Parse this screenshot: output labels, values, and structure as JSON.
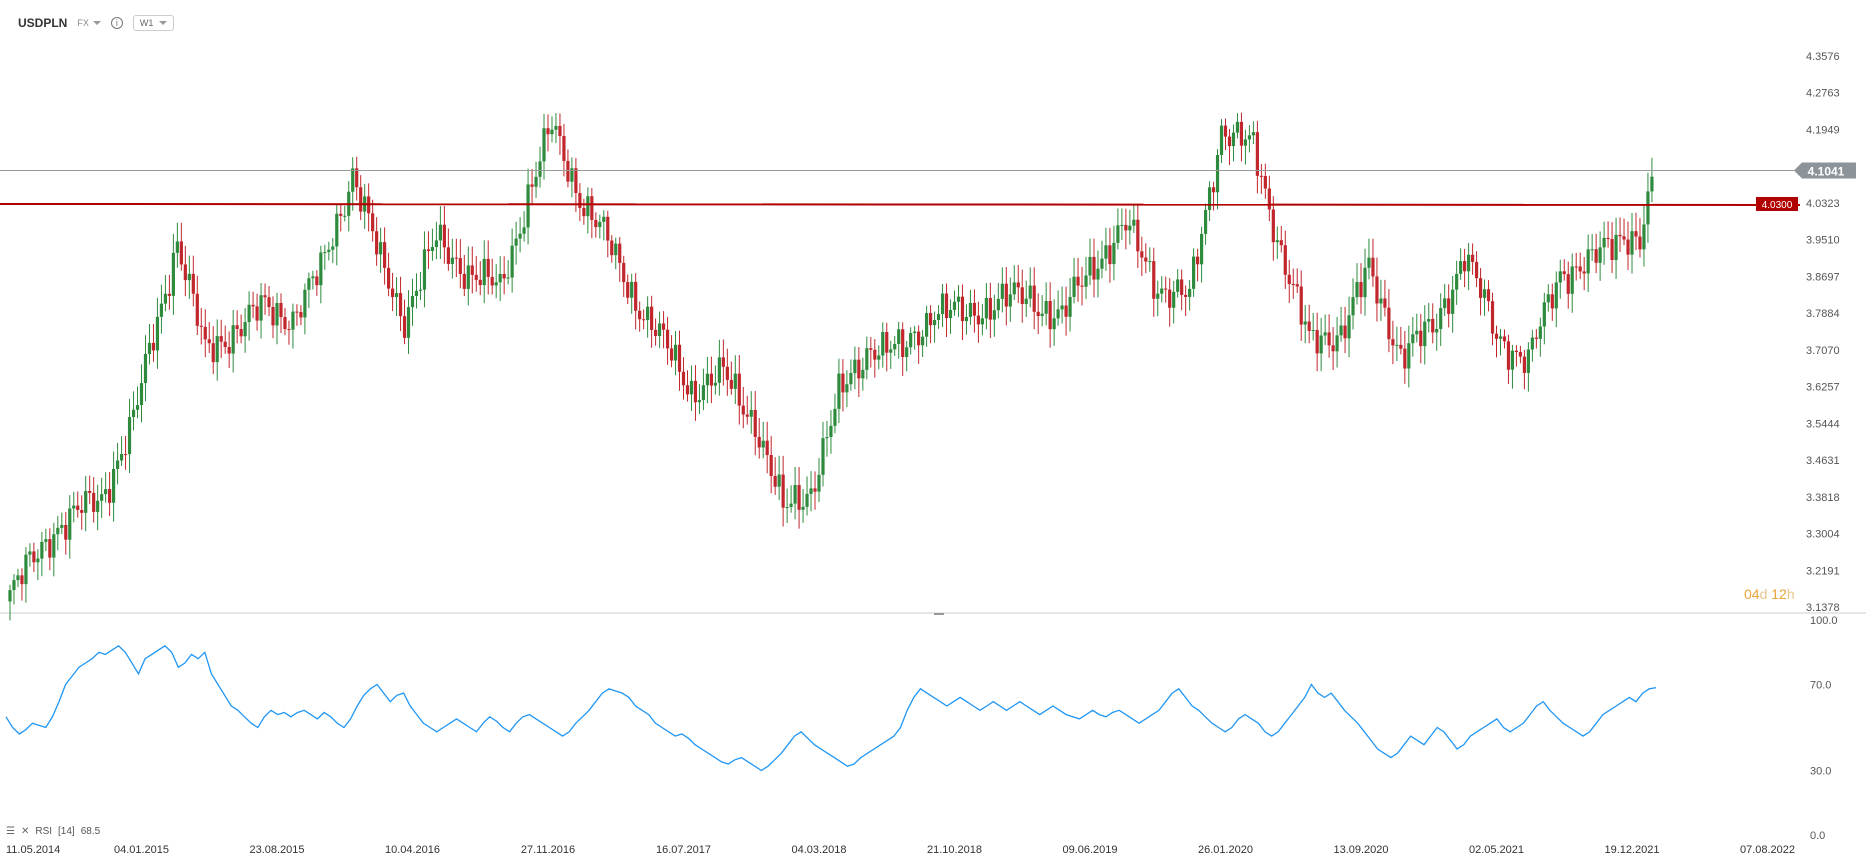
{
  "header": {
    "symbol": "USDPLN",
    "market": "FX",
    "interval": "W1"
  },
  "price_tag": {
    "current": "4.1041",
    "current_value": 4.1041,
    "level": "4.0300",
    "level_value": 4.03
  },
  "countdown": {
    "days": "04",
    "days_unit": "d",
    "hours": "12",
    "hours_unit": "h"
  },
  "rsi_legend": {
    "label": "RSI",
    "param": "[14]",
    "value": "68.5"
  },
  "colors": {
    "up": "#2e8b3e",
    "down": "#c0262b",
    "level_line": "#b00000",
    "rsi_line": "#2196f3",
    "grid": "#d8d8d8"
  },
  "chart_data": [
    {
      "type": "candlestick",
      "title": "",
      "ylim": [
        3.1378,
        4.3576
      ],
      "y_ticks": [
        "4.3576",
        "4.2763",
        "4.1949",
        "4.1041",
        "4.0323",
        "3.9510",
        "3.8697",
        "3.7884",
        "3.7070",
        "3.6257",
        "3.5444",
        "3.4631",
        "3.3818",
        "3.3004",
        "3.2191",
        "3.1378"
      ],
      "x_tick_labels": [
        "11.05.2014",
        "04.01.2015",
        "23.08.2015",
        "10.04.2016",
        "27.11.2016",
        "16.07.2017",
        "04.03.2018",
        "21.10.2018",
        "09.06.2019",
        "26.01.2020",
        "13.09.2020",
        "02.05.2021",
        "19.12.2021",
        "07.08.2022"
      ],
      "horizontal_level": 4.03,
      "close_path": [
        [
          "2014-05-11",
          3.15
        ],
        [
          "2014-08-03",
          3.31
        ],
        [
          "2014-10-26",
          3.38
        ],
        [
          "2014-12-21",
          3.55
        ],
        [
          "2015-01-18",
          3.7
        ],
        [
          "2015-03-08",
          3.95
        ],
        [
          "2015-04-26",
          3.7
        ],
        [
          "2015-06-14",
          3.75
        ],
        [
          "2015-08-09",
          3.8
        ],
        [
          "2015-09-27",
          3.78
        ],
        [
          "2015-11-15",
          3.88
        ],
        [
          "2016-01-10",
          4.1
        ],
        [
          "2016-02-28",
          3.9
        ],
        [
          "2016-04-10",
          3.78
        ],
        [
          "2016-06-05",
          3.95
        ],
        [
          "2016-07-31",
          3.88
        ],
        [
          "2016-09-25",
          3.84
        ],
        [
          "2016-11-13",
          4.05
        ],
        [
          "2016-12-25",
          4.2
        ],
        [
          "2017-02-12",
          4.05
        ],
        [
          "2017-03-26",
          3.96
        ],
        [
          "2017-05-21",
          3.82
        ],
        [
          "2017-07-09",
          3.72
        ],
        [
          "2017-08-27",
          3.62
        ],
        [
          "2017-10-22",
          3.65
        ],
        [
          "2017-12-17",
          3.55
        ],
        [
          "2018-02-04",
          3.35
        ],
        [
          "2018-03-25",
          3.4
        ],
        [
          "2018-05-13",
          3.6
        ],
        [
          "2018-07-08",
          3.72
        ],
        [
          "2018-09-02",
          3.7
        ],
        [
          "2018-10-28",
          3.8
        ],
        [
          "2018-12-23",
          3.78
        ],
        [
          "2019-02-17",
          3.82
        ],
        [
          "2019-04-14",
          3.82
        ],
        [
          "2019-06-09",
          3.78
        ],
        [
          "2019-08-04",
          3.9
        ],
        [
          "2019-09-29",
          3.98
        ],
        [
          "2019-11-24",
          3.85
        ],
        [
          "2020-01-19",
          3.82
        ],
        [
          "2020-03-15",
          4.2
        ],
        [
          "2020-05-10",
          4.15
        ],
        [
          "2020-06-21",
          3.96
        ],
        [
          "2020-08-16",
          3.72
        ],
        [
          "2020-10-11",
          3.75
        ],
        [
          "2020-11-29",
          3.88
        ],
        [
          "2021-01-24",
          3.7
        ],
        [
          "2021-03-21",
          3.75
        ],
        [
          "2021-05-16",
          3.92
        ],
        [
          "2021-07-11",
          3.74
        ],
        [
          "2021-09-05",
          3.68
        ],
        [
          "2021-10-31",
          3.88
        ],
        [
          "2021-12-26",
          3.9
        ],
        [
          "2022-02-20",
          3.97
        ],
        [
          "2022-03-20",
          3.95
        ],
        [
          "2022-04-17",
          4.1
        ]
      ]
    },
    {
      "type": "line",
      "title": "",
      "series": [
        {
          "name": "RSI [14]"
        }
      ],
      "ylim": [
        0,
        100
      ],
      "y_ticks": [
        "100.0",
        "70.0",
        "30.0",
        "0.0"
      ],
      "last_value": 68.5,
      "values": [
        55,
        50,
        47,
        49,
        52,
        51,
        50,
        55,
        62,
        70,
        74,
        78,
        80,
        82,
        85,
        84,
        86,
        88,
        85,
        80,
        75,
        82,
        84,
        86,
        88,
        85,
        78,
        80,
        84,
        82,
        85,
        75,
        70,
        65,
        60,
        58,
        55,
        52,
        50,
        55,
        58,
        56,
        57,
        55,
        57,
        58,
        56,
        54,
        57,
        55,
        52,
        50,
        54,
        60,
        65,
        68,
        70,
        66,
        62,
        65,
        66,
        60,
        56,
        52,
        50,
        48,
        50,
        52,
        54,
        52,
        50,
        48,
        52,
        55,
        53,
        50,
        48,
        52,
        55,
        56,
        54,
        52,
        50,
        48,
        46,
        48,
        52,
        55,
        58,
        62,
        66,
        68,
        67,
        66,
        64,
        60,
        58,
        56,
        52,
        50,
        48,
        46,
        47,
        45,
        42,
        40,
        38,
        36,
        34,
        33,
        35,
        36,
        34,
        32,
        30,
        32,
        35,
        38,
        42,
        46,
        48,
        45,
        42,
        40,
        38,
        36,
        34,
        32,
        33,
        36,
        38,
        40,
        42,
        44,
        46,
        50,
        58,
        64,
        68,
        66,
        64,
        62,
        60,
        62,
        64,
        62,
        60,
        58,
        60,
        62,
        60,
        58,
        60,
        62,
        60,
        58,
        56,
        58,
        60,
        58,
        56,
        55,
        54,
        56,
        58,
        56,
        55,
        57,
        58,
        56,
        54,
        52,
        54,
        56,
        58,
        62,
        66,
        68,
        64,
        60,
        58,
        55,
        52,
        50,
        48,
        50,
        54,
        56,
        54,
        52,
        48,
        46,
        48,
        52,
        56,
        60,
        64,
        70,
        66,
        64,
        66,
        62,
        58,
        55,
        52,
        48,
        44,
        40,
        38,
        36,
        38,
        42,
        46,
        44,
        42,
        46,
        50,
        48,
        44,
        40,
        42,
        46,
        48,
        50,
        52,
        54,
        50,
        48,
        50,
        52,
        56,
        60,
        62,
        58,
        55,
        52,
        50,
        48,
        46,
        48,
        52,
        56,
        58,
        60,
        62,
        64,
        62,
        66,
        68,
        68.5
      ]
    }
  ]
}
